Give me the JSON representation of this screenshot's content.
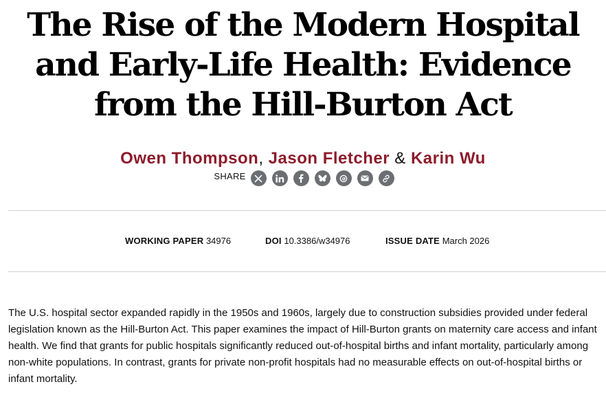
{
  "paper": {
    "title": "The Rise of the Modern Hospital and Early-Life Health: Evidence from the Hill-Burton Act",
    "authors": [
      {
        "name": "Owen Thompson"
      },
      {
        "name": "Jason Fletcher"
      },
      {
        "name": "Karin Wu"
      }
    ],
    "author_separator_1": ",",
    "author_separator_2": "&",
    "share": {
      "label": "SHARE",
      "icons": [
        "x-icon",
        "linkedin-icon",
        "facebook-icon",
        "bluesky-icon",
        "threads-icon",
        "email-icon",
        "link-icon"
      ]
    },
    "meta": {
      "working_paper_label": "WORKING PAPER",
      "working_paper_value": "34976",
      "doi_label": "DOI",
      "doi_value": "10.3386/w34976",
      "issue_date_label": "ISSUE DATE",
      "issue_date_value": "March 2026"
    },
    "abstract": "The U.S. hospital sector expanded rapidly in the 1950s and 1960s, largely due to construction subsidies provided under federal legislation known as the Hill-Burton Act. This paper examines the impact of Hill-Burton grants on maternity care access and infant health. We find that grants for public hospitals significantly reduced out-of-hospital births and infant mortality, particularly among non-white populations. In contrast, grants for private non-profit hospitals had no measurable effects on out-of-hospital births or infant mortality."
  },
  "colors": {
    "author_link": "#8c1c2b",
    "share_icon_bg": "#6d6e71",
    "rule": "#cfcfcf"
  }
}
